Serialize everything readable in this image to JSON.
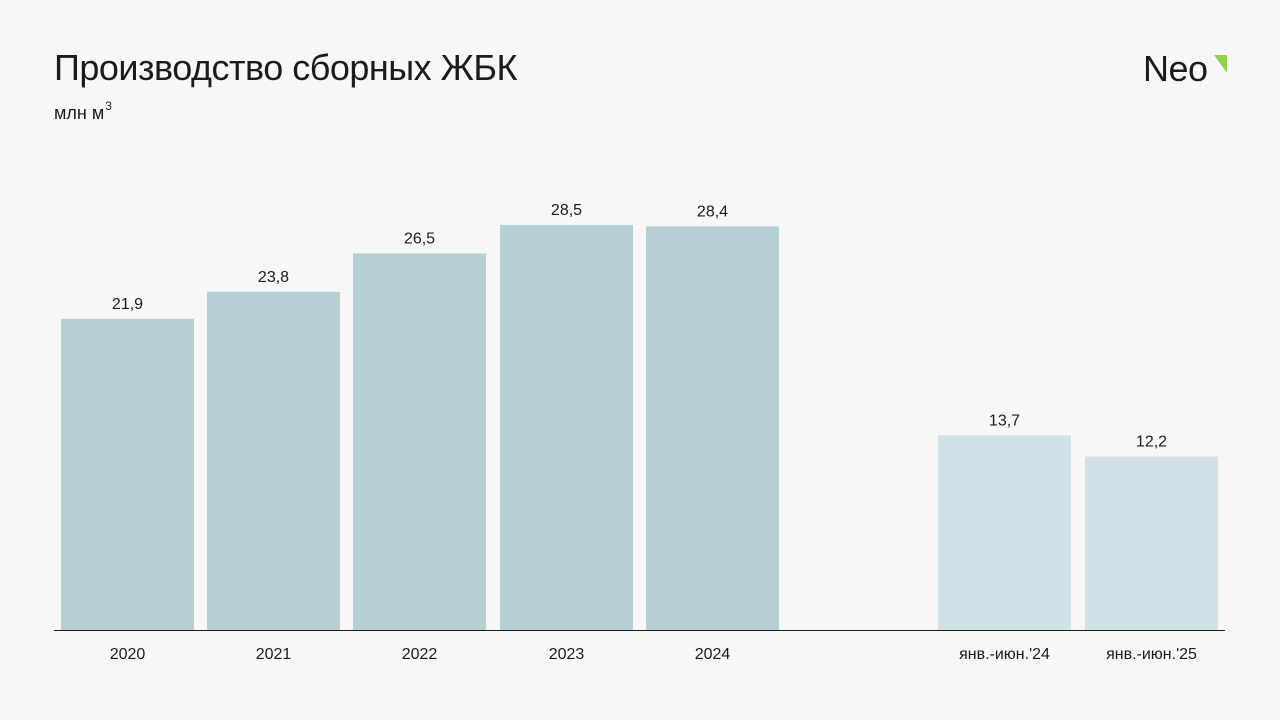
{
  "header": {
    "title": "Производство сборных ЖБК",
    "unit_text": "млн м",
    "unit_superscript": "3"
  },
  "logo": {
    "text": "Neo",
    "accent_color": "#8fd14f"
  },
  "chart_data": {
    "type": "bar",
    "title": "Производство сборных ЖБК",
    "unit": "млн м3",
    "xlabel": "",
    "ylabel": "",
    "ylim": [
      0,
      28.5
    ],
    "grid": false,
    "legend": "none",
    "categories": [
      "2020",
      "2021",
      "2022",
      "2023",
      "2024",
      "янв.-июн.'24",
      "янв.-июн.'25"
    ],
    "values": [
      21.9,
      23.8,
      26.5,
      28.5,
      28.4,
      13.7,
      12.2
    ],
    "value_labels": [
      "21,9",
      "23,8",
      "26,5",
      "28,5",
      "28,4",
      "13,7",
      "12,2"
    ],
    "colors": [
      "#b6cfd4",
      "#b6cfd4",
      "#b6cfd4",
      "#b6cfd4",
      "#b6cfd4",
      "#d1e2e5",
      "#d1e2e5"
    ]
  }
}
